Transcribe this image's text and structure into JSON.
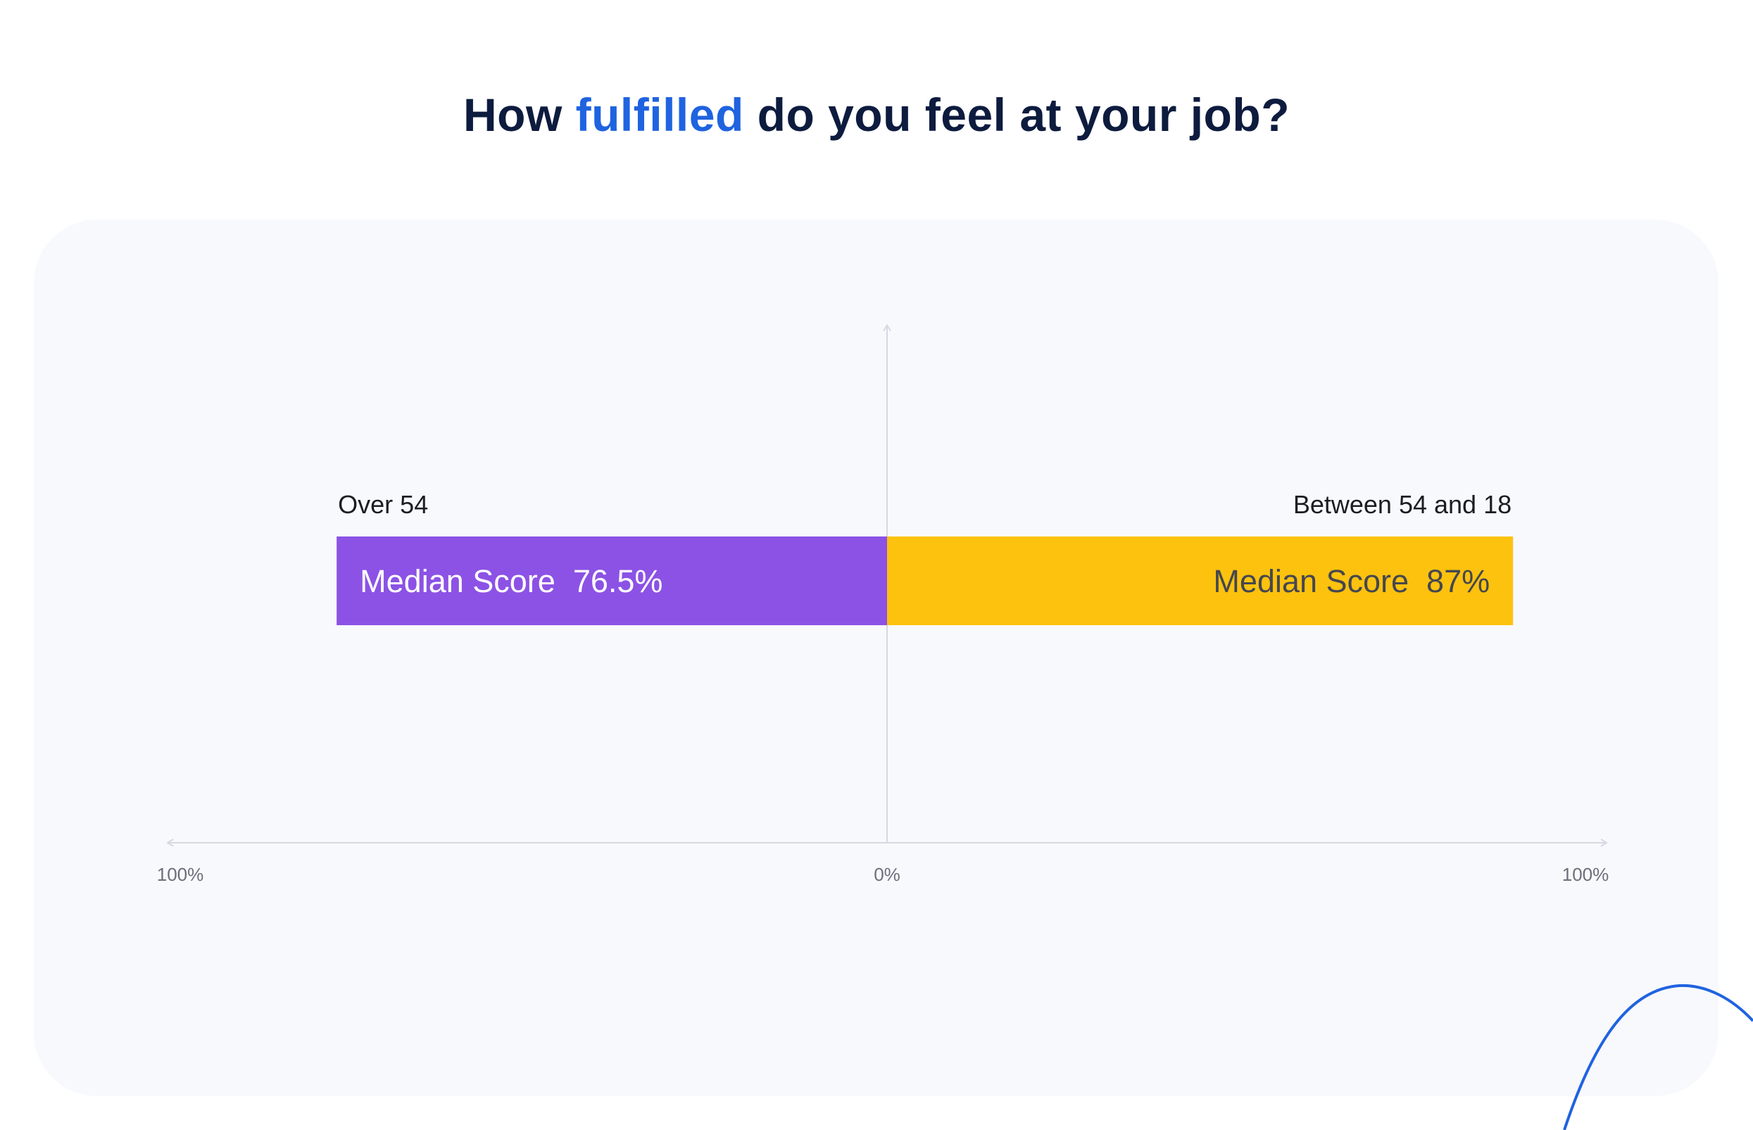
{
  "title": {
    "before": "How ",
    "highlight": "fulfilled",
    "after": " do you feel at your job?"
  },
  "colors": {
    "title": "#0d1b3e",
    "highlight": "#1f63e0",
    "card": "#f8f9fd",
    "axis": "#d6d9e2"
  },
  "chart_data": {
    "type": "bar",
    "orientation": "horizontal-diverging",
    "xlim": [
      -100,
      100
    ],
    "ticks": [
      "100%",
      "0%",
      "100%"
    ],
    "grid": false,
    "series": [
      {
        "name": "Over 54",
        "value": 76.5,
        "direction": "left",
        "label_prefix": "Median Score",
        "label_value": "76.5%",
        "color": "#8c52e5",
        "text_color": "#ffffff"
      },
      {
        "name": "Between 54 and 18",
        "value": 87,
        "direction": "right",
        "label_prefix": "Median Score",
        "label_value": "87%",
        "color": "#fdc20e",
        "text_color": "#45474f"
      }
    ]
  }
}
